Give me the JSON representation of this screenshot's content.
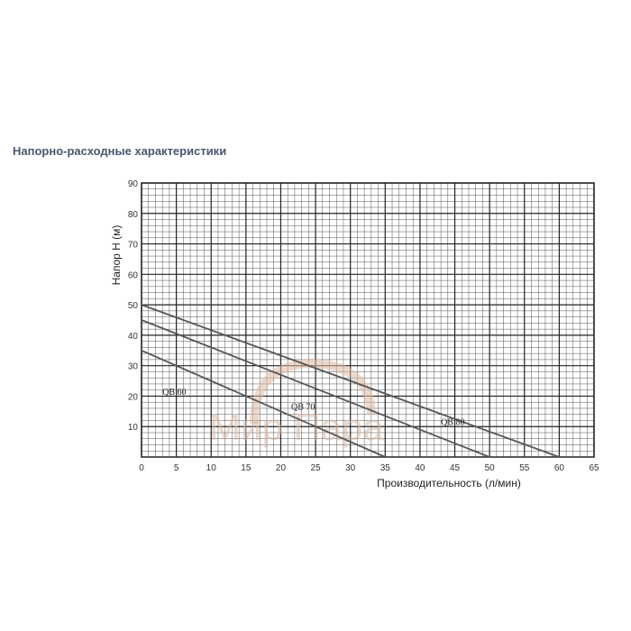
{
  "heading": "Напорно-расходные характеристики",
  "watermark": "Мир Пара",
  "chart_data": {
    "type": "line",
    "title": "",
    "xlabel": "Производительность (л/мин)",
    "ylabel": "Напор  Н (м)",
    "xlim": [
      0,
      65
    ],
    "ylim": [
      0,
      90
    ],
    "xticks": [
      0,
      5,
      10,
      15,
      20,
      25,
      30,
      35,
      40,
      45,
      50,
      55,
      60,
      65
    ],
    "yticks": [
      10,
      20,
      30,
      40,
      50,
      60,
      70,
      80,
      90
    ],
    "grid": true,
    "series": [
      {
        "name": "QB 60",
        "x": [
          0,
          35
        ],
        "y": [
          35,
          0
        ]
      },
      {
        "name": "QB 70",
        "x": [
          0,
          50
        ],
        "y": [
          45,
          0
        ]
      },
      {
        "name": "QB 80",
        "x": [
          0,
          60
        ],
        "y": [
          50,
          0
        ]
      }
    ]
  }
}
